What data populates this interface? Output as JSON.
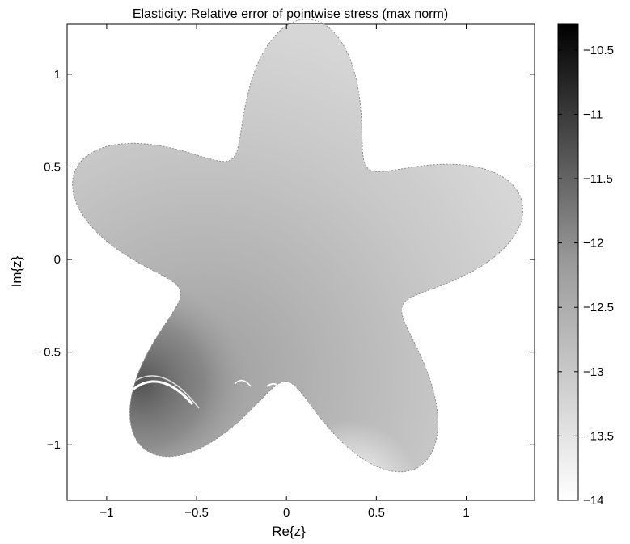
{
  "chart_data": [
    {
      "type": "heatmap",
      "title": "Elasticity: Relative error of pointwise stress (max norm)",
      "xlabel": "Re{z}",
      "ylabel": "Im{z}",
      "xlim": [
        -1.22,
        1.38
      ],
      "ylim": [
        -1.3,
        1.27
      ],
      "xticks": [
        -1,
        -0.5,
        0,
        0.5,
        1
      ],
      "xtick_labels": [
        "−1",
        "−0.5",
        "0",
        "0.5",
        "1"
      ],
      "yticks": [
        1,
        0.5,
        0,
        -0.5,
        -1
      ],
      "ytick_labels": [
        "1",
        "0.5",
        "0",
        "−0.5",
        "−1"
      ],
      "domain_shape": "five-petal star",
      "colormap": "gray (black = high error, white = low error)",
      "grid": false
    },
    {
      "type": "colorbar",
      "range": [
        -14,
        -10.3
      ],
      "ticks": [
        -10.5,
        -11,
        -11.5,
        -12,
        -12.5,
        -13,
        -13.5,
        -14
      ],
      "tick_labels": [
        "−10.5",
        "−11",
        "−11.5",
        "−12",
        "−12.5",
        "−13",
        "−13.5",
        "−14"
      ]
    }
  ]
}
